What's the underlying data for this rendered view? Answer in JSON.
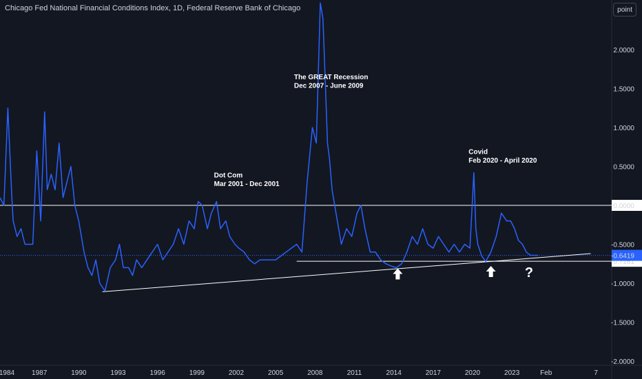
{
  "header": {
    "title": "Chicago Fed National Financial Conditions Index, 1D, Federal Reserve Bank of Chicago",
    "scale_button": "point"
  },
  "colors": {
    "background": "#131722",
    "line": "#2962ff",
    "text": "#d1d4dc",
    "level_line": "#ffffff",
    "price_label_bg": "#2962ff"
  },
  "chart_data": {
    "type": "line",
    "x_ticks": [
      "1984",
      "1987",
      "1990",
      "1993",
      "1996",
      "1999",
      "2002",
      "2005",
      "2008",
      "2011",
      "2014",
      "2017",
      "2020",
      "2023",
      "Feb",
      "7"
    ],
    "y_ticks": [
      "2.0000",
      "1.5000",
      "1.0000",
      "0.5000",
      "0.0000",
      "-0.5000",
      "-1.0000",
      "-1.5000",
      "-2.0000"
    ],
    "ylim": [
      -2.0,
      2.5
    ],
    "xlim": [
      1984.0,
      2030.6
    ],
    "series": [
      {
        "x": [
          1984.0,
          1984.3,
          1984.6,
          1984.9,
          1985.0,
          1985.3,
          1985.6,
          1985.9,
          1986.2,
          1986.5,
          1986.8,
          1987.1,
          1987.4,
          1987.6,
          1987.9,
          1988.2,
          1988.5,
          1988.8,
          1989.1,
          1989.4,
          1989.7,
          1990.0,
          1990.4,
          1990.7,
          1991.0,
          1991.3,
          1991.6,
          1992.0,
          1992.4,
          1992.8,
          1993.1,
          1993.4,
          1993.8,
          1994.1,
          1994.4,
          1994.8,
          1995.2,
          1995.6,
          1996.0,
          1996.4,
          1996.8,
          1997.2,
          1997.6,
          1998.0,
          1998.4,
          1998.8,
          1999.1,
          1999.4,
          1999.8,
          2000.1,
          2000.5,
          2000.8,
          2001.2,
          2001.5,
          2001.9,
          2002.2,
          2002.6,
          2003.0,
          2003.4,
          2003.8,
          2004.2,
          2004.6,
          2005.0,
          2005.4,
          2005.8,
          2006.2,
          2006.6,
          2007.0,
          2007.4,
          2007.8,
          2008.1,
          2008.4,
          2008.6,
          2008.8,
          2008.95,
          2009.1,
          2009.3,
          2009.6,
          2010.0,
          2010.4,
          2010.8,
          2011.2,
          2011.5,
          2011.8,
          2012.2,
          2012.6,
          2013.0,
          2013.4,
          2013.8,
          2014.2,
          2014.6,
          2015.0,
          2015.4,
          2015.8,
          2016.2,
          2016.6,
          2017.0,
          2017.4,
          2017.8,
          2018.2,
          2018.6,
          2019.0,
          2019.4,
          2019.8,
          2020.1,
          2020.25,
          2020.4,
          2020.7,
          2021.0,
          2021.4,
          2021.8,
          2022.2,
          2022.6,
          2022.9,
          2023.2,
          2023.5,
          2023.8,
          2024.1,
          2024.4,
          2024.7,
          2025.0
        ],
        "y": [
          0.1,
          0.0,
          1.25,
          0.1,
          -0.2,
          -0.4,
          -0.3,
          -0.5,
          -0.5,
          -0.5,
          0.7,
          -0.2,
          1.2,
          0.2,
          0.4,
          0.2,
          0.8,
          0.1,
          0.3,
          0.5,
          0.0,
          -0.2,
          -0.6,
          -0.8,
          -0.9,
          -0.7,
          -1.0,
          -1.1,
          -0.8,
          -0.7,
          -0.5,
          -0.8,
          -0.8,
          -0.9,
          -0.7,
          -0.8,
          -0.7,
          -0.6,
          -0.5,
          -0.7,
          -0.6,
          -0.5,
          -0.3,
          -0.5,
          -0.2,
          -0.3,
          0.05,
          0.0,
          -0.3,
          -0.1,
          0.05,
          -0.3,
          -0.2,
          -0.4,
          -0.5,
          -0.55,
          -0.6,
          -0.7,
          -0.75,
          -0.7,
          -0.7,
          -0.7,
          -0.7,
          -0.65,
          -0.6,
          -0.55,
          -0.5,
          -0.6,
          0.3,
          1.0,
          0.8,
          2.6,
          2.4,
          1.5,
          0.8,
          0.6,
          0.2,
          -0.1,
          -0.5,
          -0.3,
          -0.4,
          -0.1,
          0.0,
          -0.3,
          -0.6,
          -0.6,
          -0.7,
          -0.75,
          -0.78,
          -0.8,
          -0.75,
          -0.6,
          -0.4,
          -0.5,
          -0.3,
          -0.5,
          -0.55,
          -0.4,
          -0.5,
          -0.6,
          -0.5,
          -0.6,
          -0.5,
          -0.55,
          0.42,
          -0.3,
          -0.5,
          -0.65,
          -0.72,
          -0.6,
          -0.4,
          -0.1,
          -0.2,
          -0.2,
          -0.3,
          -0.45,
          -0.5,
          -0.6,
          -0.6416,
          -0.6419,
          -0.6419
        ]
      }
    ],
    "horizontal_lines": [
      0.0,
      -0.7181
    ],
    "trendline": {
      "from": [
        1991.8,
        -1.11
      ],
      "to": [
        2029.0,
        -0.62
      ]
    },
    "last_value_label": "-0.6419",
    "zero_label": "0.0000",
    "support_label": "-0.7181",
    "annotations": [
      {
        "text": "Dot Com",
        "x": 2000.3,
        "y": 0.36
      },
      {
        "text": "Mar 2001 - Dec 2001",
        "x": 2000.3,
        "y": 0.25
      },
      {
        "text": "The GREAT Recession",
        "x": 2006.4,
        "y": 1.62
      },
      {
        "text": "Dec 2007 - June 2009",
        "x": 2006.4,
        "y": 1.51
      },
      {
        "text": "Covid",
        "x": 2019.7,
        "y": 0.66
      },
      {
        "text": "Feb 2020 - April 2020",
        "x": 2019.7,
        "y": 0.55
      }
    ],
    "arrows": [
      {
        "x": 2014.3,
        "y": -0.88
      },
      {
        "x": 2021.4,
        "y": -0.85
      }
    ],
    "question_mark": {
      "text": "?",
      "x": 2024.3,
      "y": -0.85
    },
    "legend": "none",
    "grid": false
  }
}
